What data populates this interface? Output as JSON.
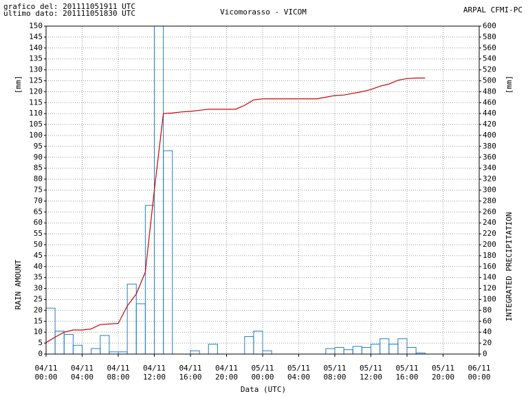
{
  "header": {
    "line1": "grafico del: 201111051911 UTC",
    "line2": "ultimo dato: 201111051830 UTC",
    "source": "ARPAL CFMI-PC"
  },
  "chart_data": {
    "type": "bar",
    "title": "Vicomorasso - VICOM",
    "x_label": "Data (UTC)",
    "y_label": "RAIN AMOUNT",
    "y_unit": "[mm]",
    "y2_label": "INTEGRATED PRECIPITATION",
    "y2_unit": "[mm]",
    "x": [
      0,
      1,
      2,
      3,
      4,
      5,
      6,
      7,
      8,
      9,
      10,
      11,
      12,
      13,
      14,
      15,
      16,
      17,
      18,
      19,
      20,
      21,
      22,
      23,
      24,
      25,
      26,
      27,
      28,
      29,
      30,
      31,
      32,
      33,
      34,
      35,
      36,
      37,
      38,
      39,
      40,
      41,
      42,
      43,
      44,
      45,
      46,
      47
    ],
    "xlim": [
      0,
      48
    ],
    "xticks": [
      {
        "value": 0,
        "label": [
          "04/11",
          "00:00"
        ]
      },
      {
        "value": 4,
        "label": [
          "04/11",
          "04:00"
        ]
      },
      {
        "value": 8,
        "label": [
          "04/11",
          "08:00"
        ]
      },
      {
        "value": 12,
        "label": [
          "04/11",
          "12:00"
        ]
      },
      {
        "value": 16,
        "label": [
          "04/11",
          "16:00"
        ]
      },
      {
        "value": 20,
        "label": [
          "04/11",
          "20:00"
        ]
      },
      {
        "value": 24,
        "label": [
          "05/11",
          "00:00"
        ]
      },
      {
        "value": 28,
        "label": [
          "05/11",
          "04:00"
        ]
      },
      {
        "value": 32,
        "label": [
          "05/11",
          "08:00"
        ]
      },
      {
        "value": 36,
        "label": [
          "05/11",
          "12:00"
        ]
      },
      {
        "value": 40,
        "label": [
          "05/11",
          "16:00"
        ]
      },
      {
        "value": 44,
        "label": [
          "05/11",
          "20:00"
        ]
      },
      {
        "value": 48,
        "label": [
          "06/11",
          "00:00"
        ]
      }
    ],
    "ylim": [
      0,
      150
    ],
    "yticks": [
      0,
      5,
      10,
      15,
      20,
      25,
      30,
      35,
      40,
      45,
      50,
      55,
      60,
      65,
      70,
      75,
      80,
      85,
      90,
      95,
      100,
      105,
      110,
      115,
      120,
      125,
      130,
      135,
      140,
      145,
      150
    ],
    "y2lim": [
      0,
      600
    ],
    "y2ticks": [
      0,
      20,
      40,
      60,
      80,
      100,
      120,
      140,
      160,
      180,
      200,
      220,
      240,
      260,
      280,
      300,
      320,
      340,
      360,
      380,
      400,
      420,
      440,
      460,
      480,
      500,
      520,
      540,
      560,
      580,
      600
    ],
    "grid": true,
    "series": [
      {
        "type": "bar",
        "color": "#1f7fc4",
        "values": [
          21,
          10.5,
          9,
          4,
          0,
          2.5,
          8.5,
          1,
          1,
          32,
          23,
          68,
          150,
          93,
          0,
          0,
          1.5,
          0,
          4.5,
          0,
          0,
          0,
          8,
          10.5,
          1.5,
          0,
          0,
          0,
          0,
          0,
          0,
          2.5,
          3,
          2,
          3.5,
          3,
          4.5,
          7,
          4.5,
          7,
          3,
          0.5,
          0,
          0,
          0,
          0,
          0,
          0
        ]
      },
      {
        "type": "line",
        "color": "#cc0000",
        "axis": "y2",
        "values": [
          21,
          31,
          40,
          44,
          44,
          46,
          54,
          55,
          56,
          88,
          110,
          150,
          300,
          440,
          441,
          443,
          444,
          446,
          448,
          448,
          448,
          448,
          455,
          465,
          467,
          467,
          467,
          467,
          467,
          467,
          467,
          470,
          473,
          474,
          477,
          480,
          484,
          490,
          494,
          501,
          504,
          505,
          505,
          null,
          null,
          null,
          null,
          null
        ]
      }
    ]
  }
}
